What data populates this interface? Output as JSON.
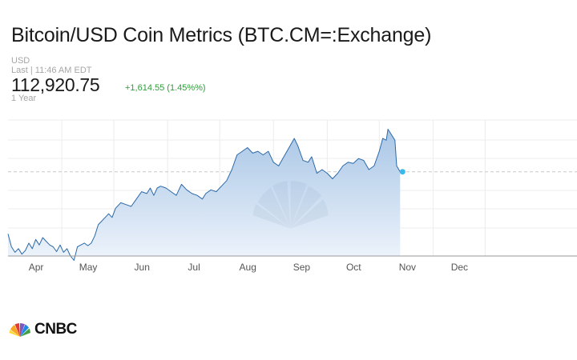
{
  "header": {
    "title": "Bitcoin/USD Coin Metrics (BTC.CM=:Exchange)",
    "currency": "USD",
    "last_updated": "Last | 11:46 AM EDT",
    "price": "112,920.75",
    "change": "+1,614.55 (1.45%%)",
    "range": "1 Year"
  },
  "brand": {
    "logo_text": "CNBC"
  },
  "colors": {
    "line": "#2c6aa8",
    "area_top": "#a9c6e6",
    "area_bottom": "#eef4fb",
    "positive": "#2e9d3a",
    "marker": "#39b9ea"
  },
  "chart_data": {
    "type": "area",
    "ylim": [
      90000,
      127000
    ],
    "grid": true,
    "reference_value": 112920.75,
    "months": [
      "Apr",
      "May",
      "Jun",
      "Jul",
      "Aug",
      "Sep",
      "Oct",
      "Nov",
      "Dec"
    ],
    "month_starts": [
      "2025-04-01",
      "2025-05-01",
      "2025-06-01",
      "2025-07-01",
      "2025-08-01",
      "2025-09-01",
      "2025-10-01",
      "2025-11-01",
      "2025-12-01"
    ],
    "x": [
      "2025-03-01",
      "2025-03-03",
      "2025-03-05",
      "2025-03-07",
      "2025-03-09",
      "2025-03-11",
      "2025-03-13",
      "2025-03-15",
      "2025-03-17",
      "2025-03-19",
      "2025-03-21",
      "2025-03-23",
      "2025-03-25",
      "2025-03-27",
      "2025-03-29",
      "2025-03-31",
      "2025-04-02",
      "2025-04-04",
      "2025-04-06",
      "2025-04-08",
      "2025-04-10",
      "2025-04-12",
      "2025-04-14",
      "2025-04-16",
      "2025-04-18",
      "2025-04-20",
      "2025-04-22",
      "2025-04-24",
      "2025-04-26",
      "2025-04-28",
      "2025-04-30",
      "2025-05-02",
      "2025-05-05",
      "2025-05-08",
      "2025-05-11",
      "2025-05-14",
      "2025-05-17",
      "2025-05-20",
      "2025-05-22",
      "2025-05-24",
      "2025-05-26",
      "2025-05-28",
      "2025-05-31",
      "2025-06-03",
      "2025-06-06",
      "2025-06-09",
      "2025-06-12",
      "2025-06-15",
      "2025-06-18",
      "2025-06-21",
      "2025-06-23",
      "2025-06-26",
      "2025-06-29",
      "2025-07-02",
      "2025-07-05",
      "2025-07-08",
      "2025-07-11",
      "2025-07-14",
      "2025-07-17",
      "2025-07-20",
      "2025-07-23",
      "2025-07-26",
      "2025-07-29",
      "2025-08-01",
      "2025-08-04",
      "2025-08-07",
      "2025-08-10",
      "2025-08-13",
      "2025-08-15",
      "2025-08-18",
      "2025-08-21",
      "2025-08-23",
      "2025-08-26",
      "2025-08-29",
      "2025-09-01",
      "2025-09-04",
      "2025-09-07",
      "2025-09-10",
      "2025-09-13",
      "2025-09-16",
      "2025-09-19",
      "2025-09-22",
      "2025-09-25",
      "2025-09-28",
      "2025-10-01",
      "2025-10-03",
      "2025-10-05",
      "2025-10-06",
      "2025-10-08",
      "2025-10-10",
      "2025-10-11",
      "2025-10-13"
    ],
    "values": [
      96000,
      92500,
      91000,
      92000,
      90500,
      91500,
      93500,
      92000,
      94500,
      93000,
      95000,
      94000,
      93000,
      92500,
      91200,
      93000,
      91000,
      92000,
      90000,
      88800,
      92500,
      93000,
      93500,
      92800,
      93500,
      95500,
      98500,
      99500,
      100500,
      101500,
      100500,
      103000,
      104500,
      104000,
      103500,
      105500,
      107500,
      107000,
      108500,
      106500,
      108500,
      109000,
      108500,
      107500,
      106500,
      109500,
      108000,
      107000,
      106500,
      105500,
      107000,
      108000,
      107500,
      109000,
      110500,
      113500,
      117500,
      118500,
      119500,
      118000,
      118500,
      117500,
      118500,
      115500,
      114500,
      117000,
      119500,
      122000,
      120000,
      116000,
      115500,
      117000,
      112500,
      113500,
      112500,
      111000,
      112500,
      114500,
      115500,
      115200,
      116500,
      116000,
      113500,
      114500,
      118500,
      122000,
      121500,
      124500,
      123000,
      121500,
      114500,
      112920.75
    ]
  }
}
